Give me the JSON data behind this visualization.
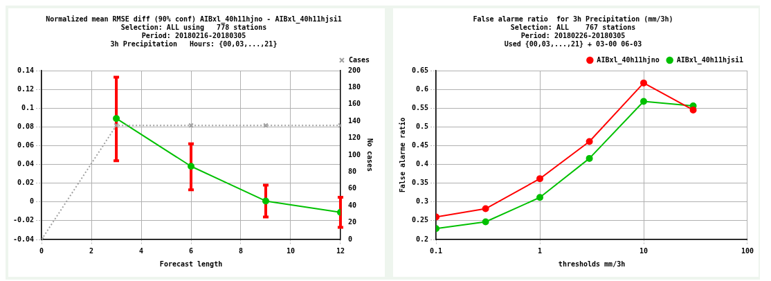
{
  "chart_data": [
    {
      "type": "line",
      "title": "Normalized mean RMSE diff (90% conf) AIBxl_40h11hjno - AIBxl_40h11hjsi1",
      "subtitle": "Selection: ALL using   778 stations\nPeriod: 20180216-20180305\n3h Precipitation   Hours: {00,03,...,21}",
      "xlabel": "Forecast length",
      "y2label": "No cases",
      "xlim": [
        0,
        12
      ],
      "xticks": [
        0,
        2,
        4,
        6,
        8,
        10,
        12
      ],
      "ylim": [
        -0.04,
        0.14
      ],
      "yticks": [
        -0.04,
        -0.02,
        0,
        0.02,
        0.04,
        0.06,
        0.08,
        0.1,
        0.12,
        0.14
      ],
      "y2lim": [
        0,
        200
      ],
      "y2ticks": [
        0,
        20,
        40,
        60,
        80,
        100,
        120,
        140,
        160,
        180,
        200
      ],
      "grid": true,
      "legend": "top right",
      "series": [
        {
          "color": "#00c000",
          "marker": "circle",
          "line_style": "solid",
          "x": [
            3,
            6,
            9,
            12
          ],
          "values": [
            0.089,
            0.038,
            0.001,
            -0.011
          ],
          "errors": [
            [
              0.044,
              0.133
            ],
            [
              0.013,
              0.062
            ],
            [
              -0.016,
              0.018
            ],
            [
              -0.027,
              0.005
            ]
          ]
        },
        {
          "name": "Cases",
          "color": "#a0a0a0",
          "marker": "cross",
          "line_style": "dotted",
          "axis": "y2",
          "x": [
            0,
            3,
            6,
            9,
            12
          ],
          "values": [
            0,
            135,
            135,
            135,
            135
          ]
        }
      ]
    },
    {
      "type": "line",
      "title": "False alarme ratio  for 3h Precipitation (mm/3h)",
      "subtitle": "Selection: ALL    767 stations\nPeriod: 20180226-20180305\nUsed {00,03,...,21} + 03-00 06-03",
      "xlabel": "thresholds mm/3h",
      "ylabel": "False alarme ratio",
      "log": "x",
      "xlim": [
        0.1,
        100
      ],
      "xticks": [
        0.1,
        1,
        10,
        100
      ],
      "ylim": [
        0.2,
        0.65
      ],
      "yticks": [
        0.2,
        0.25,
        0.3,
        0.35,
        0.4,
        0.45,
        0.5,
        0.55,
        0.6,
        0.65
      ],
      "grid": true,
      "legend": "top right",
      "x": [
        0.1,
        0.3,
        1,
        3,
        10,
        30
      ],
      "series": [
        {
          "name": "AIBxl_40h11hjno",
          "color": "#ff0000",
          "marker": "circle",
          "line_style": "solid",
          "values": [
            0.26,
            0.282,
            0.362,
            0.461,
            0.617,
            0.545
          ]
        },
        {
          "name": "AIBxl_40h11hjsi1",
          "color": "#00c000",
          "marker": "circle",
          "line_style": "solid",
          "values": [
            0.229,
            0.247,
            0.312,
            0.416,
            0.568,
            0.556
          ]
        }
      ]
    }
  ]
}
